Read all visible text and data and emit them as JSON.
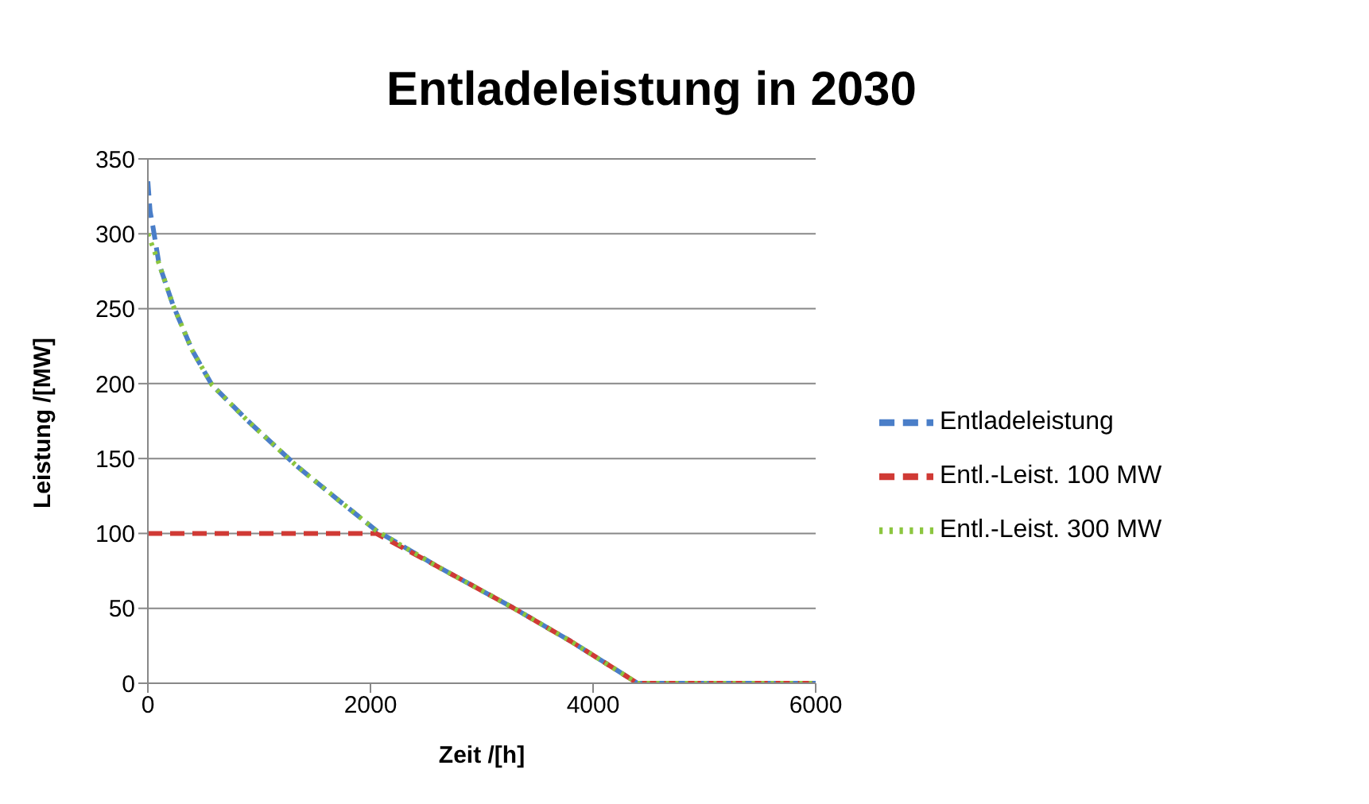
{
  "chart_data": {
    "type": "line",
    "title": "Entladeleistung in 2030",
    "xlabel": "Zeit /[h]",
    "ylabel": "Leistung /[MW]",
    "xlim": [
      0,
      6000
    ],
    "xticks": [
      0,
      2000,
      4000,
      6000
    ],
    "ylim": [
      0,
      350
    ],
    "yticks": [
      0,
      50,
      100,
      150,
      200,
      250,
      300,
      350
    ],
    "grid": "y",
    "legend": "right",
    "marker": "none",
    "series": [
      {
        "name": "Entladeleistung",
        "color": "#4a7ec8",
        "line_style": "dashed",
        "x": [
          0,
          20,
          45,
          100,
          228,
          400,
          577,
          900,
          1337,
          1700,
          2050,
          2600,
          3266,
          3800,
          4400,
          6000
        ],
        "values": [
          335,
          315,
          305,
          280,
          252,
          222,
          199,
          175,
          145,
          123,
          102,
          78,
          51,
          28,
          0,
          0
        ]
      },
      {
        "name": "Entl.-Leist. 100 MW",
        "color": "#d03a35",
        "line_style": "dashed",
        "x": [
          0,
          2050,
          2600,
          3266,
          3800,
          4400,
          6000
        ],
        "values": [
          100,
          100,
          78,
          51,
          28,
          0,
          0
        ]
      },
      {
        "name": "Entl.-Leist. 300 MW",
        "color": "#8cc63f",
        "line_style": "dotted",
        "x": [
          0,
          100,
          228,
          400,
          577,
          900,
          1337,
          1700,
          2050,
          2600,
          3266,
          3800,
          4400,
          6000
        ],
        "values": [
          300,
          280,
          252,
          222,
          199,
          175,
          145,
          123,
          102,
          78,
          51,
          28,
          0,
          0
        ]
      }
    ]
  }
}
